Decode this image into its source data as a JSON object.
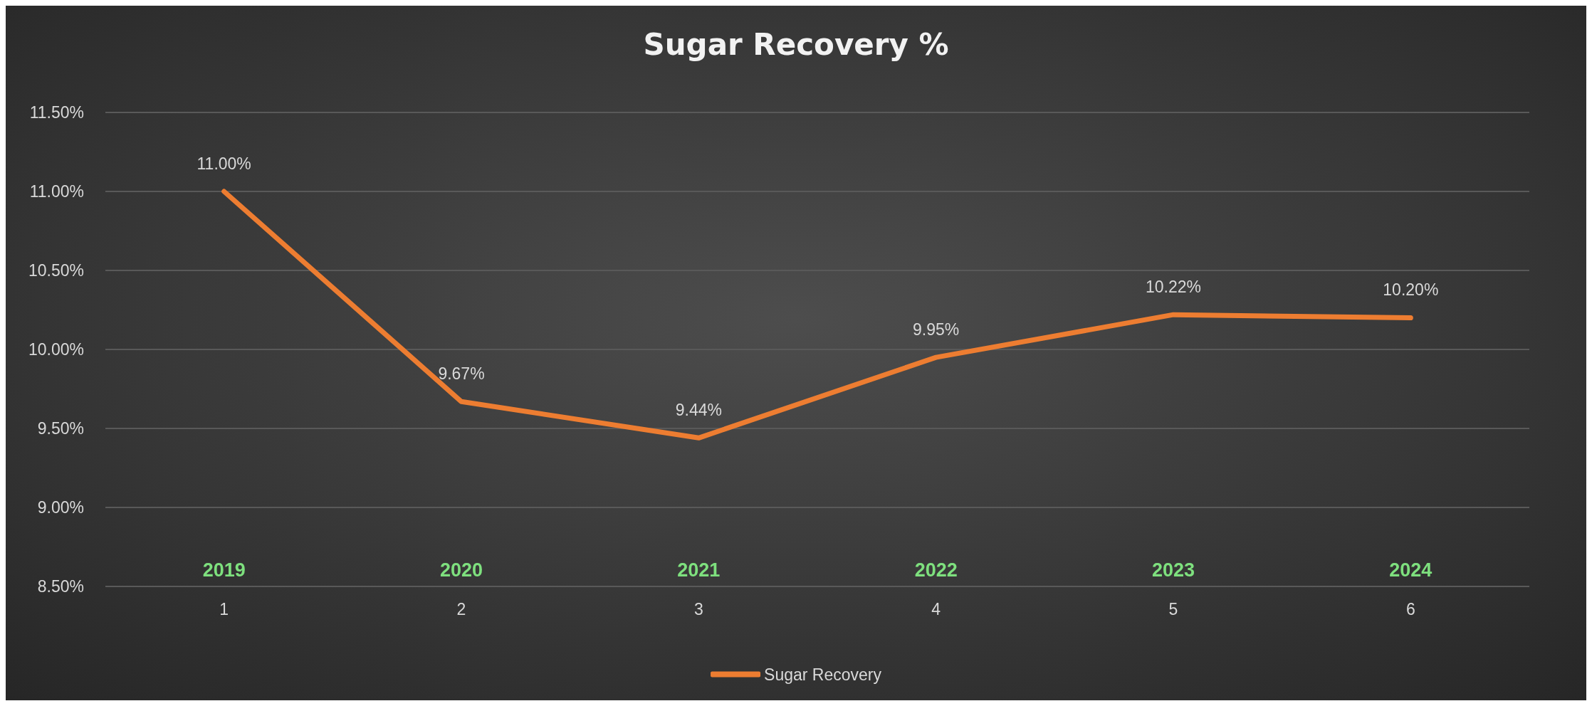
{
  "chart_data": {
    "type": "line",
    "title": "Sugar Recovery %",
    "categories": [
      "1",
      "2",
      "3",
      "4",
      "5",
      "6"
    ],
    "series": [
      {
        "name": "Sugar Recovery",
        "color": "#ed7d31",
        "values": [
          11.0,
          9.67,
          9.44,
          9.95,
          10.22,
          10.2
        ],
        "value_labels": [
          "11.00%",
          "9.67%",
          "9.44%",
          "9.95%",
          "10.22%",
          "10.20%"
        ]
      }
    ],
    "ylim": [
      8.5,
      11.5
    ],
    "yticks": [
      {
        "value": 8.5,
        "label": "8.50%"
      },
      {
        "value": 9.0,
        "label": "9.00%"
      },
      {
        "value": 9.5,
        "label": "9.50%"
      },
      {
        "value": 10.0,
        "label": "10.00%"
      },
      {
        "value": 10.5,
        "label": "10.50%"
      },
      {
        "value": 11.0,
        "label": "11.00%"
      },
      {
        "value": 11.5,
        "label": "11.50%"
      }
    ],
    "grid": "y",
    "legend": "bottom",
    "marker": "none",
    "line_style": "solid",
    "annotations": [
      "2019",
      "2020",
      "2021",
      "2022",
      "2023",
      "2024"
    ]
  }
}
